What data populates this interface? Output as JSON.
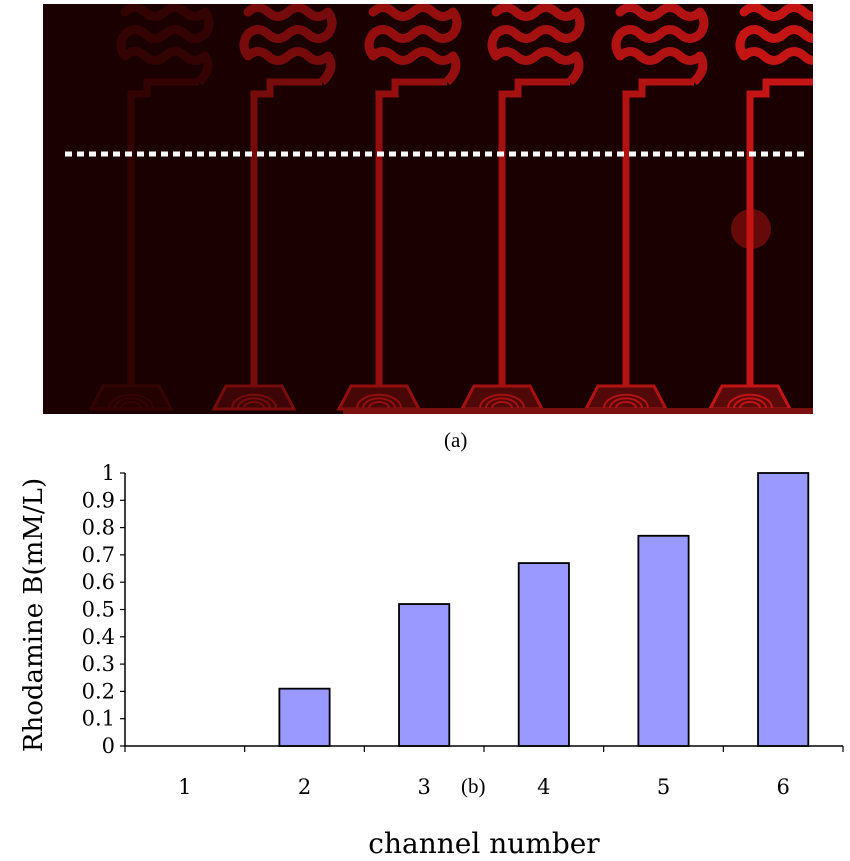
{
  "panel_labels": {
    "a": "(a)",
    "b": "(b)"
  },
  "micrograph": {
    "description_colors": {
      "background": "#1a0000",
      "channel": "#c41414",
      "marker_line": "#ffffff"
    },
    "channel_count": 6
  },
  "chart_data": {
    "type": "bar",
    "categories": [
      "1",
      "2",
      "3",
      "4",
      "5",
      "6"
    ],
    "values": [
      0,
      0.21,
      0.52,
      0.67,
      0.77,
      1.0
    ],
    "xlabel": "channel number",
    "ylabel": "Rhodamine B(mM/L)",
    "ylim": [
      0,
      1
    ],
    "yticks": [
      "0",
      "0.1",
      "0.2",
      "0.3",
      "0.4",
      "0.5",
      "0.6",
      "0.7",
      "0.8",
      "0.9",
      "1"
    ],
    "grid": false,
    "legend": "none",
    "bar_color": "#9999ff",
    "bar_edge_color": "#000000"
  }
}
